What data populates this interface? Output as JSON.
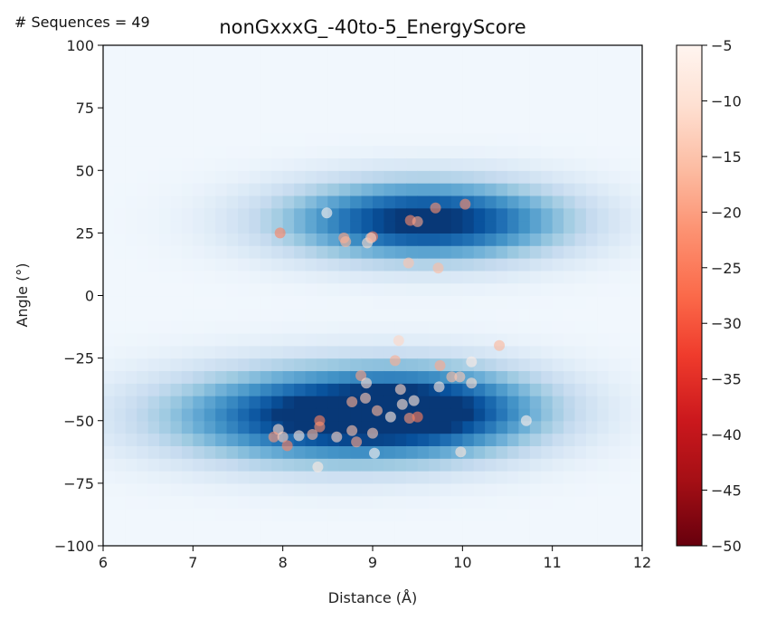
{
  "annotation": "# Sequences = 49",
  "chart_data": {
    "type": "heatmap",
    "title": "nonGxxxG_-40to-5_EnergyScore",
    "xlabel": "Distance (Å)",
    "ylabel": "Angle (°)",
    "xlim": [
      6,
      12
    ],
    "ylim": [
      -100,
      100
    ],
    "x_ticks": [
      "6",
      "7",
      "8",
      "9",
      "10",
      "11",
      "12"
    ],
    "y_ticks": [
      "100",
      "75",
      "50",
      "25",
      "0",
      "−25",
      "−50",
      "−75",
      "−100"
    ],
    "heatmap_colormap": "Blues",
    "density_clusters": [
      {
        "center": [
          8.5,
          -48
        ],
        "spread": [
          1.25,
          13
        ],
        "weight": 1.0
      },
      {
        "center": [
          9.8,
          -45
        ],
        "spread": [
          0.9,
          12
        ],
        "weight": 0.55
      },
      {
        "center": [
          9.2,
          30
        ],
        "spread": [
          1.0,
          11
        ],
        "weight": 0.72
      },
      {
        "center": [
          10.2,
          30
        ],
        "spread": [
          0.9,
          11
        ],
        "weight": 0.45
      }
    ],
    "colorbar": {
      "colormap": "Reds_r",
      "range": [
        -50,
        -5
      ],
      "ticks": [
        "−5",
        "−10",
        "−15",
        "−20",
        "−25",
        "−30",
        "−35",
        "−40",
        "−45",
        "−50"
      ]
    },
    "points": [
      {
        "x": 7.97,
        "y": 25,
        "score": -24
      },
      {
        "x": 8.49,
        "y": 33,
        "score": -5
      },
      {
        "x": 8.68,
        "y": 23,
        "score": -20
      },
      {
        "x": 8.7,
        "y": 21.5,
        "score": -17
      },
      {
        "x": 8.94,
        "y": 21,
        "score": -11
      },
      {
        "x": 9.0,
        "y": 23.5,
        "score": -25
      },
      {
        "x": 8.98,
        "y": 23,
        "score": -13
      },
      {
        "x": 9.42,
        "y": 30,
        "score": -23
      },
      {
        "x": 9.5,
        "y": 29.5,
        "score": -19
      },
      {
        "x": 9.7,
        "y": 35,
        "score": -22
      },
      {
        "x": 10.03,
        "y": 36.5,
        "score": -23
      },
      {
        "x": 9.4,
        "y": 13,
        "score": -15
      },
      {
        "x": 9.73,
        "y": 11,
        "score": -16
      },
      {
        "x": 9.29,
        "y": -18,
        "score": -12
      },
      {
        "x": 10.41,
        "y": -20,
        "score": -17
      },
      {
        "x": 9.25,
        "y": -26,
        "score": -18
      },
      {
        "x": 10.1,
        "y": -26.5,
        "score": -7
      },
      {
        "x": 9.75,
        "y": -28,
        "score": -19
      },
      {
        "x": 8.87,
        "y": -32,
        "score": -20
      },
      {
        "x": 9.88,
        "y": -32.5,
        "score": -16
      },
      {
        "x": 9.97,
        "y": -32.5,
        "score": -14
      },
      {
        "x": 8.93,
        "y": -35,
        "score": -10
      },
      {
        "x": 9.74,
        "y": -36.5,
        "score": -8
      },
      {
        "x": 10.1,
        "y": -35,
        "score": -11
      },
      {
        "x": 9.31,
        "y": -37.5,
        "score": -12
      },
      {
        "x": 8.92,
        "y": -41,
        "score": -14
      },
      {
        "x": 8.77,
        "y": -42.5,
        "score": -18
      },
      {
        "x": 9.46,
        "y": -42,
        "score": -9
      },
      {
        "x": 9.33,
        "y": -43.5,
        "score": -10
      },
      {
        "x": 9.05,
        "y": -46,
        "score": -17
      },
      {
        "x": 9.2,
        "y": -48.5,
        "score": -8
      },
      {
        "x": 9.41,
        "y": -49,
        "score": -21
      },
      {
        "x": 9.5,
        "y": -48.5,
        "score": -25
      },
      {
        "x": 8.41,
        "y": -50,
        "score": -24
      },
      {
        "x": 8.41,
        "y": -52.5,
        "score": -22
      },
      {
        "x": 7.95,
        "y": -53.5,
        "score": -11
      },
      {
        "x": 8.77,
        "y": -54,
        "score": -15
      },
      {
        "x": 9.0,
        "y": -55,
        "score": -14
      },
      {
        "x": 8.33,
        "y": -55.5,
        "score": -17
      },
      {
        "x": 8.18,
        "y": -56,
        "score": -8
      },
      {
        "x": 7.9,
        "y": -56.5,
        "score": -21
      },
      {
        "x": 8.0,
        "y": -56.5,
        "score": -13
      },
      {
        "x": 8.6,
        "y": -56.5,
        "score": -12
      },
      {
        "x": 8.82,
        "y": -58.5,
        "score": -19
      },
      {
        "x": 8.05,
        "y": -60,
        "score": -24
      },
      {
        "x": 9.02,
        "y": -63,
        "score": -5
      },
      {
        "x": 9.98,
        "y": -62.5,
        "score": -9
      },
      {
        "x": 8.39,
        "y": -68.5,
        "score": -8
      },
      {
        "x": 10.71,
        "y": -50,
        "score": -6
      }
    ]
  }
}
